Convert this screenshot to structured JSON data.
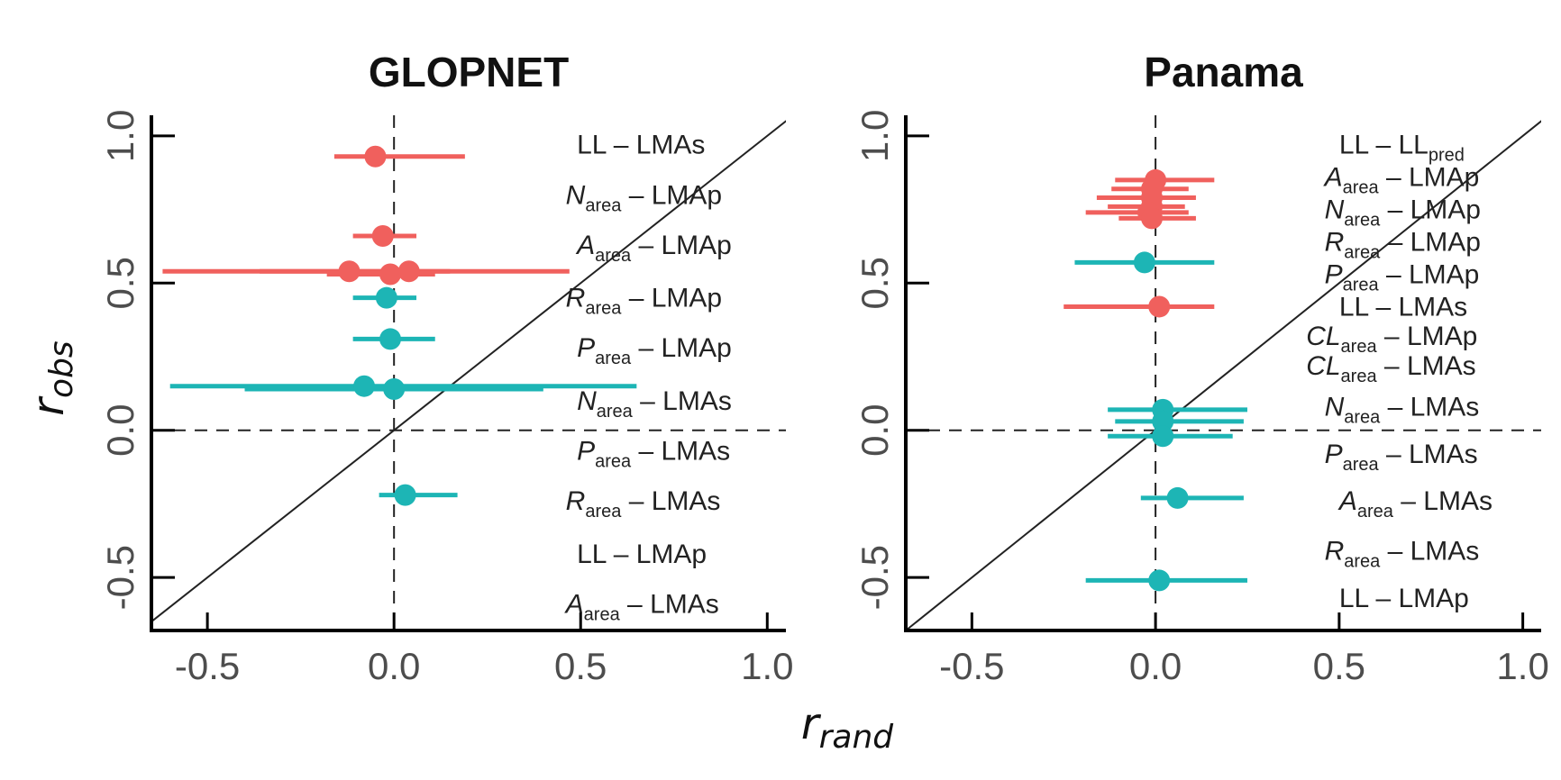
{
  "colors": {
    "red": "#F0605D",
    "teal": "#1DB5B5",
    "axis": "#000000",
    "tick_text": "#4d4d4d"
  },
  "xlabel": {
    "base": "r",
    "sub": "rand"
  },
  "ylabel": {
    "base": "r",
    "sub": "obs"
  },
  "chart_data": [
    {
      "type": "scatter",
      "title": "GLOPNET",
      "xlim": [
        -0.65,
        1.05
      ],
      "ylim": [
        -0.68,
        1.07
      ],
      "xticks": [
        -0.5,
        0.0,
        0.5,
        1.0
      ],
      "xtick_labels": [
        "-0.5",
        "0.0",
        "0.5",
        "1.0"
      ],
      "yticks": [
        -0.5,
        0.0,
        0.5,
        1.0
      ],
      "ytick_labels": [
        "-0.5",
        "0.0",
        "0.5",
        "1.0"
      ],
      "reference_lines": [
        "y = x",
        "x = 0 (dashed)",
        "y = 0 (dashed)"
      ],
      "points": [
        {
          "x": -0.05,
          "y": 0.93,
          "xmin": -0.16,
          "xmax": 0.19,
          "color": "red"
        },
        {
          "x": -0.03,
          "y": 0.66,
          "xmin": -0.11,
          "xmax": 0.06,
          "color": "red"
        },
        {
          "x": -0.12,
          "y": 0.54,
          "xmin": -0.62,
          "xmax": 0.47,
          "color": "red"
        },
        {
          "x": 0.04,
          "y": 0.54,
          "xmin": -0.36,
          "xmax": 0.15,
          "color": "red"
        },
        {
          "x": -0.01,
          "y": 0.53,
          "xmin": -0.18,
          "xmax": 0.11,
          "color": "red"
        },
        {
          "x": -0.02,
          "y": 0.45,
          "xmin": -0.11,
          "xmax": 0.06,
          "color": "teal"
        },
        {
          "x": -0.01,
          "y": 0.31,
          "xmin": -0.11,
          "xmax": 0.11,
          "color": "teal"
        },
        {
          "x": -0.08,
          "y": 0.15,
          "xmin": -0.6,
          "xmax": 0.65,
          "color": "teal"
        },
        {
          "x": 0.0,
          "y": 0.14,
          "xmin": -0.4,
          "xmax": 0.4,
          "color": "teal"
        },
        {
          "x": 0.03,
          "y": -0.22,
          "xmin": -0.04,
          "xmax": 0.17,
          "color": "teal"
        }
      ],
      "labels": [
        {
          "main": "LL",
          "sub": "",
          "target": "LMAs",
          "target_sub": "",
          "x": 0.49,
          "y": 0.97
        },
        {
          "main": "N",
          "sub": "area",
          "target": "LMAp",
          "target_sub": "",
          "x": 0.46,
          "y": 0.8
        },
        {
          "main": "A",
          "sub": "area",
          "target": "LMAp",
          "target_sub": "",
          "x": 0.49,
          "y": 0.63
        },
        {
          "main": "R",
          "sub": "area",
          "target": "LMAp",
          "target_sub": "",
          "x": 0.46,
          "y": 0.45
        },
        {
          "main": "P",
          "sub": "area",
          "target": "LMAp",
          "target_sub": "",
          "x": 0.49,
          "y": 0.28
        },
        {
          "main": "N",
          "sub": "area",
          "target": "LMAs",
          "target_sub": "",
          "x": 0.49,
          "y": 0.1
        },
        {
          "main": "P",
          "sub": "area",
          "target": "LMAs",
          "target_sub": "",
          "x": 0.49,
          "y": -0.07
        },
        {
          "main": "R",
          "sub": "area",
          "target": "LMAs",
          "target_sub": "",
          "x": 0.46,
          "y": -0.24
        },
        {
          "main": "LL",
          "sub": "",
          "target": "LMAp",
          "target_sub": "",
          "x": 0.49,
          "y": -0.42
        },
        {
          "main": "A",
          "sub": "area",
          "target": "LMAs",
          "target_sub": "",
          "x": 0.46,
          "y": -0.59
        }
      ]
    },
    {
      "type": "scatter",
      "title": "Panama",
      "xlim": [
        -0.68,
        1.05
      ],
      "ylim": [
        -0.68,
        1.07
      ],
      "xticks": [
        -0.5,
        0.0,
        0.5,
        1.0
      ],
      "xtick_labels": [
        "-0.5",
        "0.0",
        "0.5",
        "1.0"
      ],
      "yticks": [
        -0.5,
        0.0,
        0.5,
        1.0
      ],
      "ytick_labels": [
        "-0.5",
        "0.0",
        "0.5",
        "1.0"
      ],
      "reference_lines": [
        "y = x",
        "x = 0 (dashed)",
        "y = 0 (dashed)"
      ],
      "points": [
        {
          "x": 0.0,
          "y": 0.85,
          "xmin": -0.11,
          "xmax": 0.16,
          "color": "red"
        },
        {
          "x": -0.01,
          "y": 0.82,
          "xmin": -0.12,
          "xmax": 0.09,
          "color": "red"
        },
        {
          "x": -0.01,
          "y": 0.79,
          "xmin": -0.16,
          "xmax": 0.11,
          "color": "red"
        },
        {
          "x": -0.01,
          "y": 0.76,
          "xmin": -0.13,
          "xmax": 0.08,
          "color": "red"
        },
        {
          "x": -0.02,
          "y": 0.74,
          "xmin": -0.19,
          "xmax": 0.09,
          "color": "red"
        },
        {
          "x": -0.01,
          "y": 0.72,
          "xmin": -0.1,
          "xmax": 0.11,
          "color": "red"
        },
        {
          "x": -0.03,
          "y": 0.57,
          "xmin": -0.22,
          "xmax": 0.16,
          "color": "teal"
        },
        {
          "x": 0.01,
          "y": 0.42,
          "xmin": -0.25,
          "xmax": 0.16,
          "color": "red"
        },
        {
          "x": 0.02,
          "y": 0.07,
          "xmin": -0.13,
          "xmax": 0.25,
          "color": "teal"
        },
        {
          "x": 0.02,
          "y": 0.03,
          "xmin": -0.11,
          "xmax": 0.24,
          "color": "teal"
        },
        {
          "x": 0.02,
          "y": -0.02,
          "xmin": -0.13,
          "xmax": 0.21,
          "color": "teal"
        },
        {
          "x": 0.06,
          "y": -0.23,
          "xmin": -0.04,
          "xmax": 0.24,
          "color": "teal"
        },
        {
          "x": 0.01,
          "y": -0.51,
          "xmin": -0.19,
          "xmax": 0.25,
          "color": "teal"
        }
      ],
      "labels": [
        {
          "main": "LL",
          "sub": "",
          "target": "LL",
          "target_sub": "pred",
          "x": 0.5,
          "y": 0.97
        },
        {
          "main": "A",
          "sub": "area",
          "target": "LMAp",
          "target_sub": "",
          "x": 0.46,
          "y": 0.86
        },
        {
          "main": "N",
          "sub": "area",
          "target": "LMAp",
          "target_sub": "",
          "x": 0.46,
          "y": 0.75
        },
        {
          "main": "R",
          "sub": "area",
          "target": "LMAp",
          "target_sub": "",
          "x": 0.46,
          "y": 0.64
        },
        {
          "main": "P",
          "sub": "area",
          "target": "LMAp",
          "target_sub": "",
          "x": 0.46,
          "y": 0.53
        },
        {
          "main": "LL",
          "sub": "",
          "target": "LMAs",
          "target_sub": "",
          "x": 0.5,
          "y": 0.42
        },
        {
          "main": "CL",
          "sub": "area",
          "target": "LMAp",
          "target_sub": "",
          "x": 0.41,
          "y": 0.32
        },
        {
          "main": "CL",
          "sub": "area",
          "target": "LMAs",
          "target_sub": "",
          "x": 0.41,
          "y": 0.22
        },
        {
          "main": "N",
          "sub": "area",
          "target": "LMAs",
          "target_sub": "",
          "x": 0.46,
          "y": 0.08
        },
        {
          "main": "P",
          "sub": "area",
          "target": "LMAs",
          "target_sub": "",
          "x": 0.46,
          "y": -0.08
        },
        {
          "main": "A",
          "sub": "area",
          "target": "LMAs",
          "target_sub": "",
          "x": 0.5,
          "y": -0.24
        },
        {
          "main": "R",
          "sub": "area",
          "target": "LMAs",
          "target_sub": "",
          "x": 0.46,
          "y": -0.41
        },
        {
          "main": "LL",
          "sub": "",
          "target": "LMAp",
          "target_sub": "",
          "x": 0.5,
          "y": -0.57
        }
      ]
    }
  ]
}
